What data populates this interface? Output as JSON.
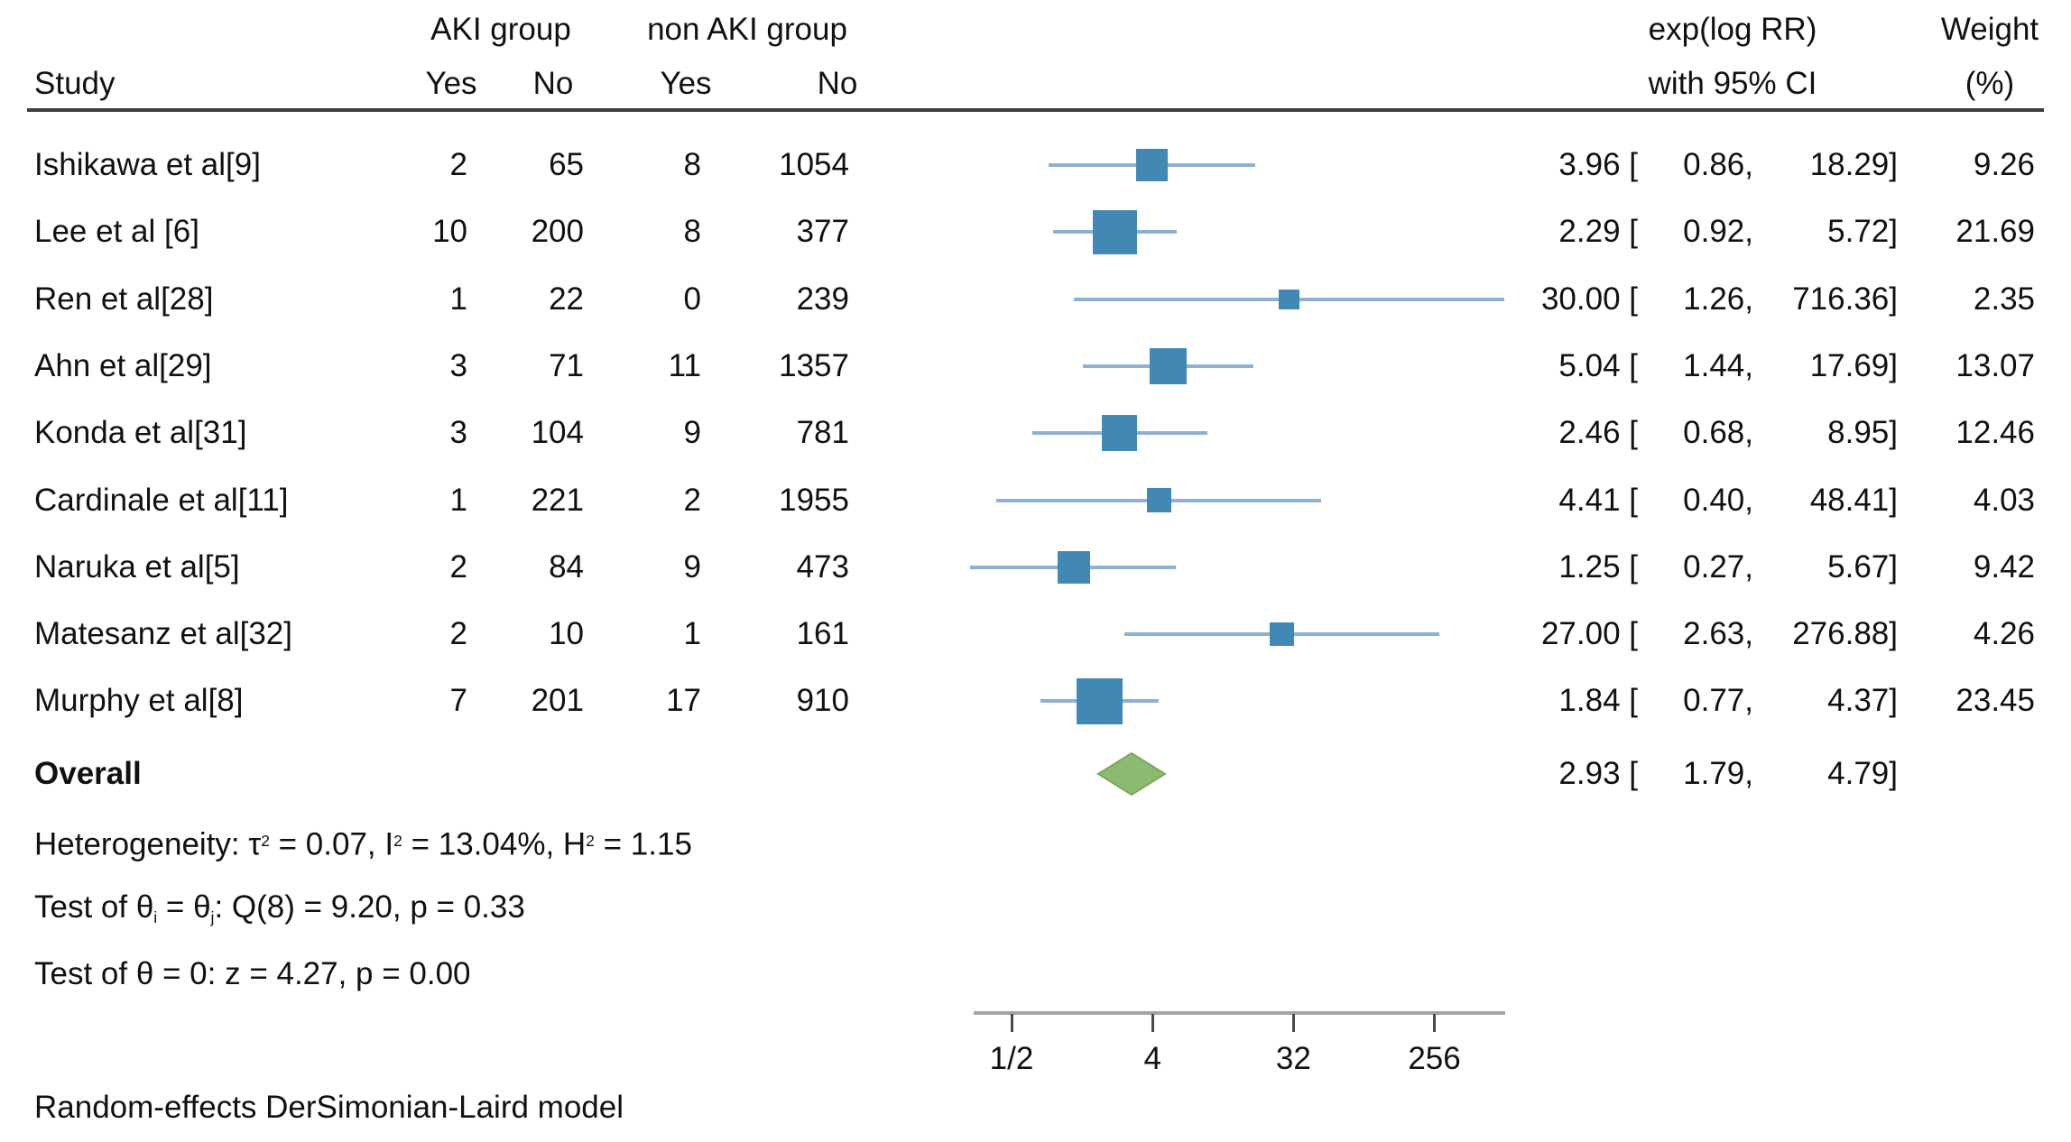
{
  "chart_data": {
    "type": "forest",
    "title": "",
    "columns": {
      "study": "Study",
      "group1": "AKI group",
      "group2": "non AKI group",
      "yes": "Yes",
      "no": "No",
      "effect_line1": "exp(log RR)",
      "effect_line2": "with 95% CI",
      "weight_line1": "Weight",
      "weight_line2": "(%)"
    },
    "studies": [
      {
        "label": "Ishikawa et al[9]",
        "aki_yes": 2,
        "aki_no": 65,
        "non_aki_yes": 8,
        "non_aki_no": 1054,
        "est": 3.96,
        "lo": 0.86,
        "hi": 18.29,
        "weight": 9.26
      },
      {
        "label": "Lee et al [6]",
        "aki_yes": 10,
        "aki_no": 200,
        "non_aki_yes": 8,
        "non_aki_no": 377,
        "est": 2.29,
        "lo": 0.92,
        "hi": 5.72,
        "weight": 21.69
      },
      {
        "label": "Ren et al[28]",
        "aki_yes": 1,
        "aki_no": 22,
        "non_aki_yes": 0,
        "non_aki_no": 239,
        "est": 30.0,
        "lo": 1.26,
        "hi": 716.36,
        "weight": 2.35
      },
      {
        "label": "Ahn et al[29]",
        "aki_yes": 3,
        "aki_no": 71,
        "non_aki_yes": 11,
        "non_aki_no": 1357,
        "est": 5.04,
        "lo": 1.44,
        "hi": 17.69,
        "weight": 13.07
      },
      {
        "label": "Konda et al[31]",
        "aki_yes": 3,
        "aki_no": 104,
        "non_aki_yes": 9,
        "non_aki_no": 781,
        "est": 2.46,
        "lo": 0.68,
        "hi": 8.95,
        "weight": 12.46
      },
      {
        "label": "Cardinale et al[11]",
        "aki_yes": 1,
        "aki_no": 221,
        "non_aki_yes": 2,
        "non_aki_no": 1955,
        "est": 4.41,
        "lo": 0.4,
        "hi": 48.41,
        "weight": 4.03
      },
      {
        "label": "Naruka et al[5]",
        "aki_yes": 2,
        "aki_no": 84,
        "non_aki_yes": 9,
        "non_aki_no": 473,
        "est": 1.25,
        "lo": 0.27,
        "hi": 5.67,
        "weight": 9.42
      },
      {
        "label": "Matesanz et al[32]",
        "aki_yes": 2,
        "aki_no": 10,
        "non_aki_yes": 1,
        "non_aki_no": 161,
        "est": 27.0,
        "lo": 2.63,
        "hi": 276.88,
        "weight": 4.26
      },
      {
        "label": "Murphy et al[8]",
        "aki_yes": 7,
        "aki_no": 201,
        "non_aki_yes": 17,
        "non_aki_no": 910,
        "est": 1.84,
        "lo": 0.77,
        "hi": 4.37,
        "weight": 23.45
      }
    ],
    "overall": {
      "label": "Overall",
      "est": 2.93,
      "lo": 1.79,
      "hi": 4.79
    },
    "stats": [
      {
        "name": "heterogeneity",
        "segments": [
          {
            "t": "Heterogeneity: τ"
          },
          {
            "t": "2",
            "style": "sup"
          },
          {
            "t": " = 0.07, I"
          },
          {
            "t": "2",
            "style": "sup"
          },
          {
            "t": " = 13.04%, H"
          },
          {
            "t": "2",
            "style": "sup"
          },
          {
            "t": " = 1.15"
          }
        ]
      },
      {
        "name": "test-theta-ij",
        "segments": [
          {
            "t": "Test of θ"
          },
          {
            "t": "i",
            "style": "sub"
          },
          {
            "t": " = θ"
          },
          {
            "t": "j",
            "style": "sub"
          },
          {
            "t": ": Q(8) = 9.20, p = 0.33"
          }
        ]
      },
      {
        "name": "test-theta-zero",
        "segments": [
          {
            "t": "Test of θ = 0: z = 4.27, p = 0.00"
          }
        ]
      }
    ],
    "axis": {
      "scale": "log",
      "ticks": [
        {
          "label": "1/2",
          "value": 0.5
        },
        {
          "label": "4",
          "value": 4
        },
        {
          "label": "32",
          "value": 32
        },
        {
          "label": "256",
          "value": 256
        }
      ]
    },
    "footer": "Random-effects DerSimonian-Laird model",
    "colors": {
      "marker_fill": "#4189b4",
      "ci_line": "#8fb0d0",
      "diamond_fill": "#8cba70",
      "diamond_border": "#7aa75c",
      "axis_line": "#a3a3a3",
      "tick": "#4a4a4a",
      "header_rule": "#3d3d3d",
      "text": "#111111"
    }
  }
}
